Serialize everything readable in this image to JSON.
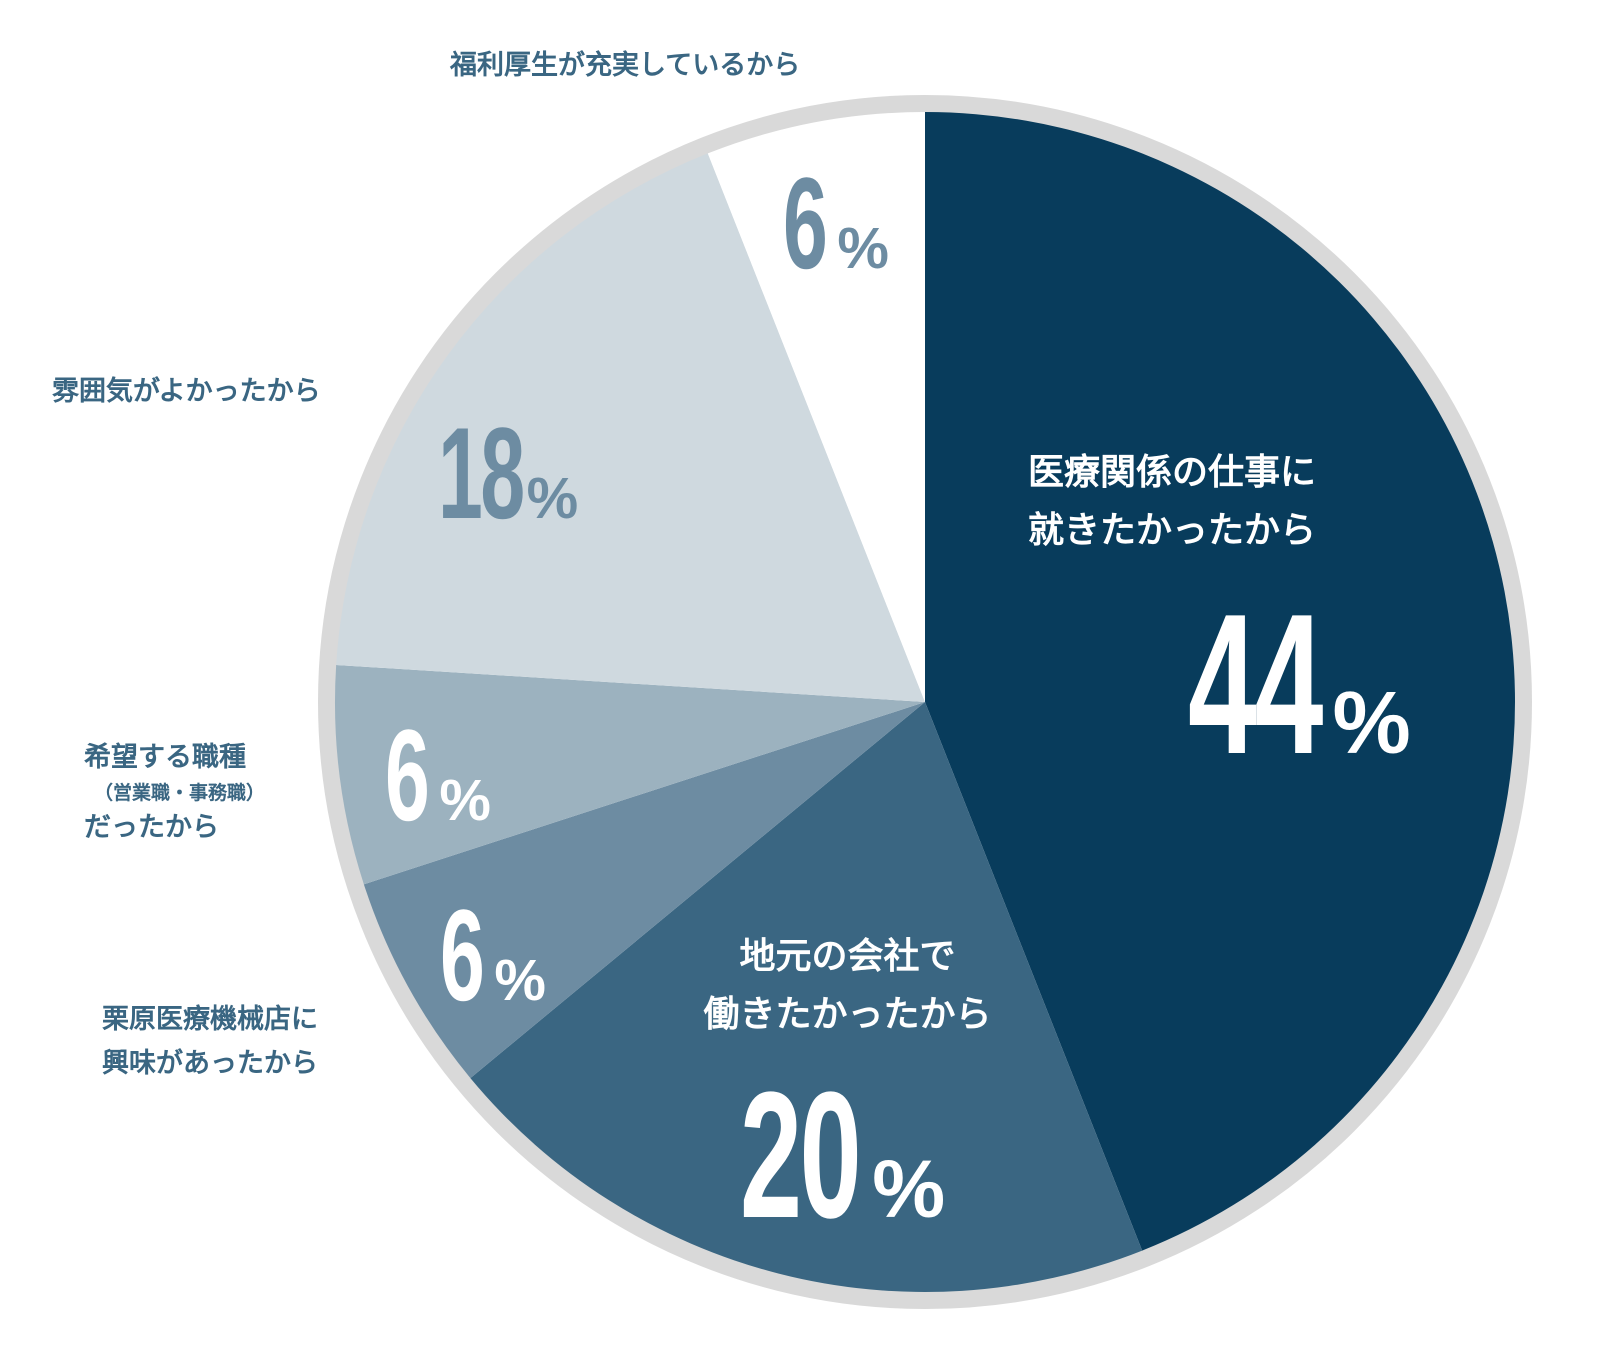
{
  "chart_data": {
    "type": "pie",
    "start": "top",
    "direction": "clockwise",
    "ring_color": "#d9d9d9",
    "slices": [
      {
        "label": "医療関係の仕事に就きたかったから",
        "label_lines": [
          "医療関係の仕事に",
          "就きたかったから"
        ],
        "value": 44,
        "number": "44",
        "color": "#083c5c",
        "text_color": "#ffffff"
      },
      {
        "label": "地元の会社で働きたかったから",
        "label_lines": [
          "地元の会社で",
          "働きたかったから"
        ],
        "value": 20,
        "number": "20",
        "color": "#3a6682",
        "text_color": "#ffffff"
      },
      {
        "label": "栗原医療機械店に興味があったから",
        "label_lines": [
          "栗原医療機械店に",
          "興味があったから"
        ],
        "value": 6,
        "number": "6",
        "color": "#6d8ca2",
        "text_color": "#ffffff"
      },
      {
        "label": "希望する職種（営業職・事務職）だったから",
        "label_lines": [
          "希望する職種",
          "（営業職・事務職）",
          "だったから"
        ],
        "value": 6,
        "number": "6",
        "color": "#9cb2bf",
        "text_color": "#ffffff"
      },
      {
        "label": "雰囲気がよかったから",
        "label_lines": [
          "雰囲気がよかったから"
        ],
        "value": 18,
        "number": "18",
        "color": "#cfd9df",
        "text_color": "#6d8ca2"
      },
      {
        "label": "福利厚生が充実しているから",
        "label_lines": [
          "福利厚生が充実しているから"
        ],
        "value": 6,
        "number": "6",
        "color": "#ffffff",
        "text_color": "#6d8ca2"
      }
    ],
    "unit": "%"
  }
}
